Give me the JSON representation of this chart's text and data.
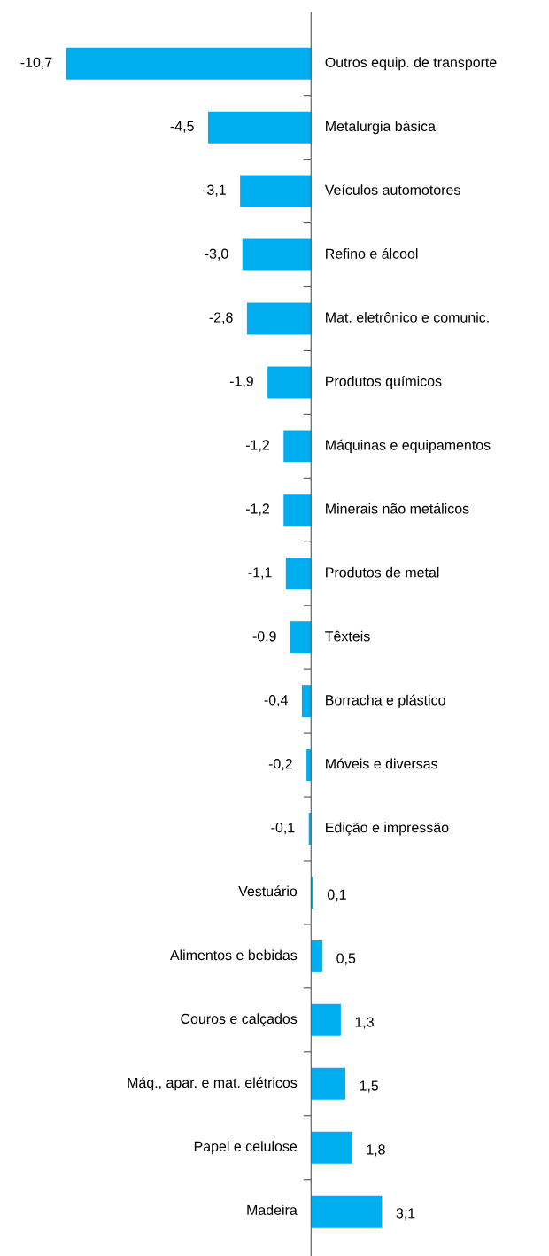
{
  "chart_data": {
    "type": "bar",
    "orientation": "horizontal",
    "color": "#00aeef",
    "categories": [
      "Outros equip. de transporte",
      "Metalurgia básica",
      "Veículos automotores",
      "Refino e álcool",
      "Mat. eletrônico e comunic.",
      "Produtos químicos",
      "Máquinas e equipamentos",
      "Minerais não metálicos",
      "Produtos de metal",
      "Têxteis",
      "Borracha e plástico",
      "Móveis e diversas",
      "Edição e impressão",
      "Vestuário",
      "Alimentos e bebidas",
      "Couros e calçados",
      "Máq., apar. e mat. elétricos",
      "Papel e celulose",
      "Madeira"
    ],
    "values": [
      -10.7,
      -4.5,
      -3.1,
      -3.0,
      -2.8,
      -1.9,
      -1.2,
      -1.2,
      -1.1,
      -0.9,
      -0.4,
      -0.2,
      -0.1,
      0.1,
      0.5,
      1.3,
      1.5,
      1.8,
      3.1
    ],
    "value_labels": [
      "-10,7",
      "-4,5",
      "-3,1",
      "-3,0",
      "-2,8",
      "-1,9",
      "-1,2",
      "-1,2",
      "-1,1",
      "-0,9",
      "-0,4",
      "-0,2",
      "-0,1",
      "0,1",
      "0,5",
      "1,3",
      "1,5",
      "1,8",
      "3,1"
    ],
    "grid": false,
    "legend": false
  }
}
